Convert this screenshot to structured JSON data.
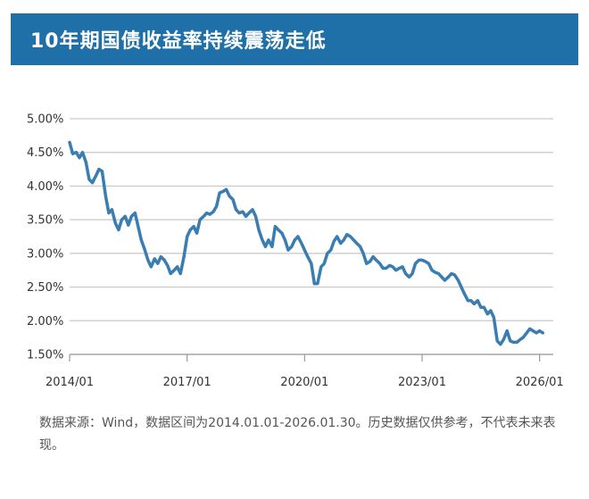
{
  "header": {
    "title": "10年期国债收益率持续震荡走低"
  },
  "chart_data": {
    "type": "line",
    "title": "10年期国债收益率持续震荡走低",
    "xlabel": "",
    "ylabel": "",
    "ylim": [
      1.5,
      5.0
    ],
    "xlim": [
      2014.0,
      2026.35
    ],
    "y_ticks": [
      {
        "value": 5.0,
        "label": "5.00%"
      },
      {
        "value": 4.5,
        "label": "4.50%"
      },
      {
        "value": 4.0,
        "label": "4.00%"
      },
      {
        "value": 3.5,
        "label": "3.50%"
      },
      {
        "value": 3.0,
        "label": "3.00%"
      },
      {
        "value": 2.5,
        "label": "2.50%"
      },
      {
        "value": 2.0,
        "label": "2.00%"
      },
      {
        "value": 1.5,
        "label": "1.50%"
      }
    ],
    "x_ticks": [
      {
        "value": 2014.0,
        "label": "2014/01"
      },
      {
        "value": 2017.0,
        "label": "2017/01"
      },
      {
        "value": 2020.0,
        "label": "2020/01"
      },
      {
        "value": 2023.0,
        "label": "2023/01"
      },
      {
        "value": 2026.0,
        "label": "2026/01"
      }
    ],
    "grid": true,
    "legend": "none",
    "line_color": "#3a7db0",
    "series": [
      {
        "name": "10年期国债收益率",
        "x": [
          2014.0,
          2014.08,
          2014.17,
          2014.25,
          2014.33,
          2014.42,
          2014.5,
          2014.58,
          2014.67,
          2014.75,
          2014.83,
          2014.92,
          2015.0,
          2015.08,
          2015.17,
          2015.25,
          2015.33,
          2015.42,
          2015.5,
          2015.58,
          2015.67,
          2015.75,
          2015.83,
          2015.92,
          2016.0,
          2016.08,
          2016.17,
          2016.25,
          2016.33,
          2016.42,
          2016.5,
          2016.58,
          2016.67,
          2016.75,
          2016.83,
          2016.92,
          2017.0,
          2017.08,
          2017.17,
          2017.25,
          2017.33,
          2017.42,
          2017.5,
          2017.58,
          2017.67,
          2017.75,
          2017.83,
          2017.92,
          2018.0,
          2018.08,
          2018.17,
          2018.25,
          2018.33,
          2018.42,
          2018.5,
          2018.58,
          2018.67,
          2018.75,
          2018.83,
          2018.92,
          2019.0,
          2019.08,
          2019.17,
          2019.25,
          2019.33,
          2019.42,
          2019.5,
          2019.58,
          2019.67,
          2019.75,
          2019.83,
          2019.92,
          2020.0,
          2020.08,
          2020.17,
          2020.25,
          2020.33,
          2020.42,
          2020.5,
          2020.58,
          2020.67,
          2020.75,
          2020.83,
          2020.92,
          2021.0,
          2021.08,
          2021.17,
          2021.25,
          2021.33,
          2021.42,
          2021.5,
          2021.58,
          2021.67,
          2021.75,
          2021.83,
          2021.92,
          2022.0,
          2022.08,
          2022.17,
          2022.25,
          2022.33,
          2022.42,
          2022.5,
          2022.58,
          2022.67,
          2022.75,
          2022.83,
          2022.92,
          2023.0,
          2023.08,
          2023.17,
          2023.25,
          2023.33,
          2023.42,
          2023.5,
          2023.58,
          2023.67,
          2023.75,
          2023.83,
          2023.92,
          2024.0,
          2024.08,
          2024.17,
          2024.25,
          2024.33,
          2024.42,
          2024.5,
          2024.58,
          2024.67,
          2024.75,
          2024.83,
          2024.92,
          2025.0,
          2025.08,
          2025.17,
          2025.25,
          2025.33,
          2025.42,
          2025.5,
          2025.58,
          2025.67,
          2025.75,
          2025.83,
          2025.92,
          2026.0,
          2026.08
        ],
        "values": [
          4.65,
          4.48,
          4.5,
          4.42,
          4.5,
          4.35,
          4.1,
          4.05,
          4.15,
          4.25,
          4.22,
          3.85,
          3.6,
          3.65,
          3.45,
          3.35,
          3.5,
          3.55,
          3.42,
          3.55,
          3.6,
          3.4,
          3.2,
          3.05,
          2.9,
          2.8,
          2.92,
          2.85,
          2.95,
          2.9,
          2.82,
          2.7,
          2.75,
          2.8,
          2.7,
          2.95,
          3.25,
          3.35,
          3.4,
          3.3,
          3.5,
          3.55,
          3.6,
          3.58,
          3.62,
          3.7,
          3.9,
          3.92,
          3.95,
          3.85,
          3.8,
          3.65,
          3.6,
          3.62,
          3.55,
          3.6,
          3.65,
          3.55,
          3.35,
          3.2,
          3.1,
          3.2,
          3.1,
          3.4,
          3.35,
          3.3,
          3.2,
          3.05,
          3.1,
          3.2,
          3.25,
          3.15,
          3.05,
          2.95,
          2.85,
          2.55,
          2.55,
          2.8,
          2.85,
          3.0,
          3.05,
          3.18,
          3.25,
          3.15,
          3.2,
          3.28,
          3.25,
          3.2,
          3.15,
          3.1,
          3.0,
          2.85,
          2.88,
          2.95,
          2.9,
          2.85,
          2.78,
          2.78,
          2.82,
          2.8,
          2.75,
          2.78,
          2.8,
          2.7,
          2.65,
          2.7,
          2.85,
          2.9,
          2.9,
          2.88,
          2.85,
          2.75,
          2.72,
          2.7,
          2.65,
          2.6,
          2.65,
          2.7,
          2.68,
          2.6,
          2.5,
          2.4,
          2.3,
          2.3,
          2.25,
          2.3,
          2.2,
          2.2,
          2.1,
          2.15,
          2.05,
          1.7,
          1.65,
          1.72,
          1.85,
          1.7,
          1.68,
          1.68,
          1.72,
          1.75,
          1.82,
          1.88,
          1.85,
          1.82,
          1.85,
          1.82
        ]
      }
    ]
  },
  "footnote": {
    "text": "数据来源：Wind，数据区间为2014.01.01-2026.01.30。历史数据仅供参考，不代表未来表现。"
  }
}
